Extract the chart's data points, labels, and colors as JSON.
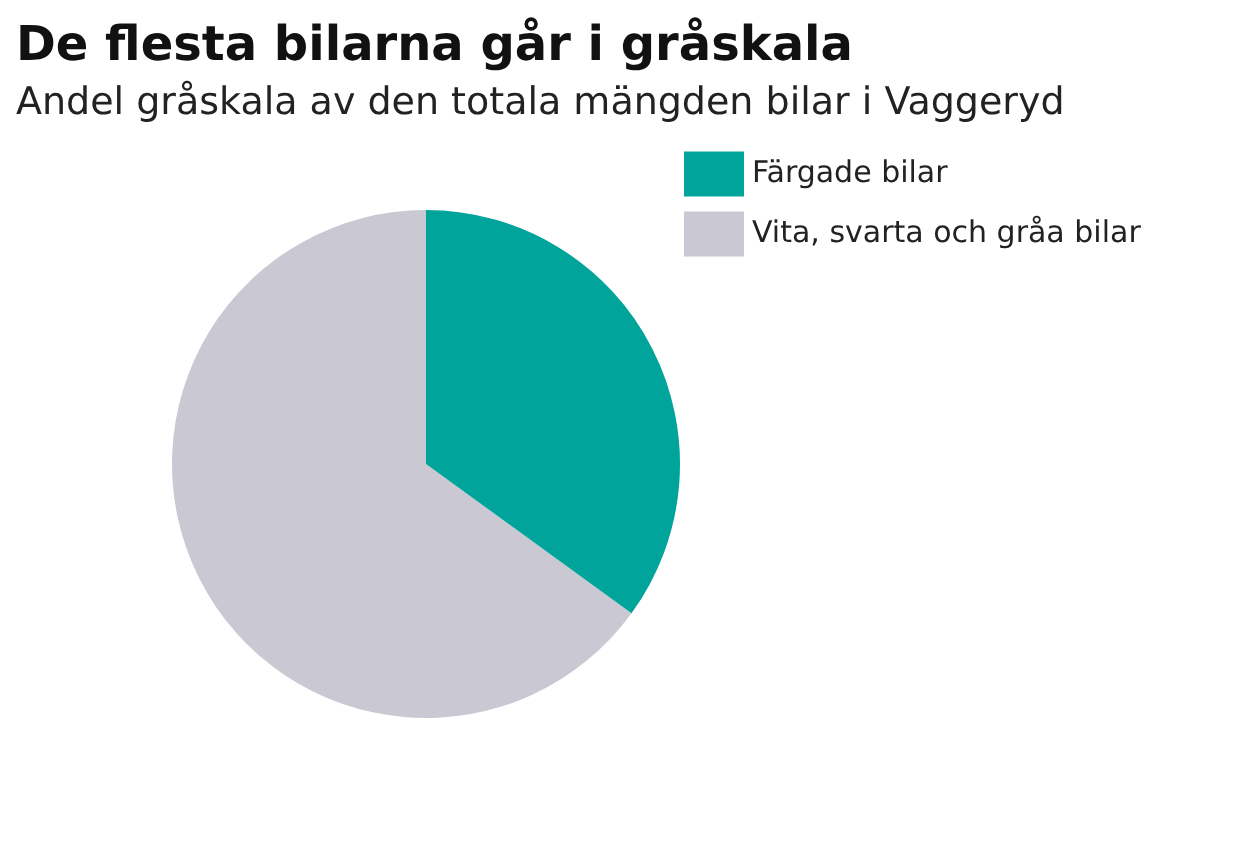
{
  "chart_data": {
    "type": "pie",
    "title": "De flesta bilarna går i gråskala",
    "subtitle": "Andel gråskala av den totala mängden bilar i Vaggeryd",
    "categories": [
      "Vita, svarta och gråa bilar",
      "Färgade bilar"
    ],
    "values": [
      65,
      35
    ],
    "colors": [
      "#c9c8d3",
      "#00a49a"
    ],
    "legend": "top right"
  }
}
